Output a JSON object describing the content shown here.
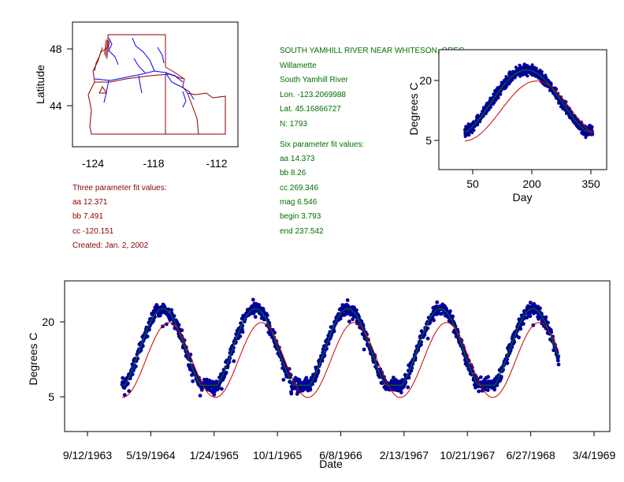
{
  "colors": {
    "map_border": "#8b0000",
    "rivers": "#0000ff",
    "points": "#000099",
    "point_outline": "#1a1aa0",
    "fit3": "#cc0000",
    "fit6": "#008000",
    "station_text": "#007000",
    "fit3_text": "#8b0000"
  },
  "map": {
    "ylabel": "Latitude",
    "y_ticks": [
      "48",
      "44"
    ],
    "x_ticks": [
      "-124",
      "-118",
      "-112"
    ]
  },
  "station": {
    "name": "SOUTH YAMHILL RIVER NEAR WHITESON, OREG.",
    "basin": "Willamette",
    "river": "South Yamhill River",
    "lon": "Lon. -123.2069988",
    "lat": "Lat. 45.16866727",
    "n": "N: 1793"
  },
  "six_fit": {
    "header": "Six parameter fit values:",
    "lines": [
      "aa 14.373",
      "bb 8.26",
      "cc 269.346",
      "mag 6.546",
      "begin 3.793",
      "end 237.542"
    ]
  },
  "three_fit": {
    "header": "Three parameter fit values:",
    "lines": [
      "aa 12.371",
      "bb 7.491",
      "cc -120.151"
    ],
    "created": "Created:   Jan. 2, 2002"
  },
  "chart_data": [
    {
      "type": "scatter",
      "xlabel": "Day",
      "ylabel": "Degrees C",
      "x_ticks": [
        "50",
        "200",
        "350"
      ],
      "y_ticks": [
        "5",
        "20"
      ],
      "xlim": [
        1,
        366
      ],
      "ylim": [
        -1,
        25
      ],
      "fit3": {
        "aa": 12.371,
        "bb": 7.491,
        "cc": -120.151
      },
      "fit6": {
        "aa": 14.373,
        "bb": 8.26,
        "cc": 269.346,
        "mag": 6.546,
        "begin": 3.793,
        "end": 237.542
      },
      "observations_x_range": [
        30,
        355
      ],
      "n": 1793
    },
    {
      "type": "scatter",
      "xlabel": "Date",
      "ylabel": "Degrees C",
      "x_ticks": [
        "9/12/1963",
        "5/19/1964",
        "1/24/1965",
        "10/1/1965",
        "6/8/1966",
        "2/13/1967",
        "10/21/1967",
        "6/27/1968",
        "3/4/1969"
      ],
      "y_ticks": [
        "5",
        "20"
      ],
      "xlim": [
        "1963-07-01",
        "1969-04-01"
      ],
      "ylim": [
        -3,
        25
      ],
      "observations_date_range": [
        "1964-01-27",
        "1968-10-15"
      ],
      "n": 1793
    }
  ]
}
